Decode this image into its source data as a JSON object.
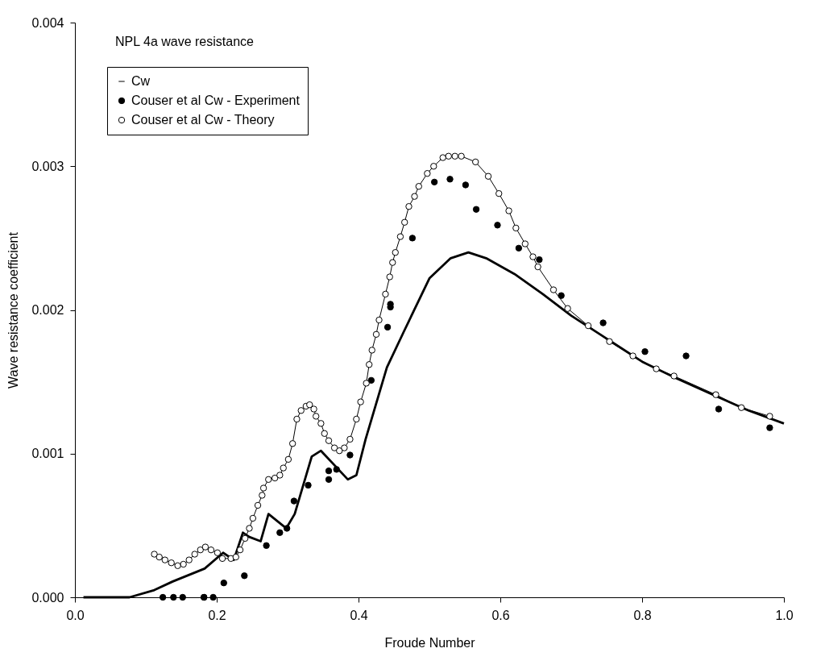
{
  "chart_data": {
    "type": "line",
    "title": "NPL 4a wave resistance",
    "xlabel": "Froude Number",
    "ylabel": "Wave resistance coefficient",
    "xlim": [
      0,
      1
    ],
    "ylim": [
      0,
      0.004
    ],
    "xticks": [
      {
        "value": 0,
        "label": "0.0"
      },
      {
        "value": 0.2,
        "label": "0.2"
      },
      {
        "value": 0.4,
        "label": "0.4"
      },
      {
        "value": 0.6,
        "label": "0.6"
      },
      {
        "value": 0.8,
        "label": "0.8"
      },
      {
        "value": 1,
        "label": "1.0"
      }
    ],
    "yticks": [
      {
        "value": 0,
        "label": "0.000"
      },
      {
        "value": 0.001,
        "label": "0.001"
      },
      {
        "value": 0.002,
        "label": "0.002"
      },
      {
        "value": 0.003,
        "label": "0.003"
      },
      {
        "value": 0.004,
        "label": "0.004"
      }
    ],
    "grid": false,
    "legend": "top left",
    "series": [
      {
        "name": "Cw",
        "marker": "none",
        "color": "#000000",
        "x": [
          0.012,
          0.026,
          0.056,
          0.077,
          0.112,
          0.138,
          0.183,
          0.209,
          0.224,
          0.237,
          0.246,
          0.262,
          0.273,
          0.298,
          0.31,
          0.334,
          0.347,
          0.385,
          0.397,
          0.41,
          0.44,
          0.464,
          0.5,
          0.53,
          0.555,
          0.58,
          0.62,
          0.66,
          0.7,
          0.75,
          0.8,
          0.85,
          0.9,
          0.95,
          1.0
        ],
        "values": [
          0,
          0,
          0,
          0,
          5e-05,
          0.00011,
          0.0002,
          0.00031,
          0.00026,
          0.00045,
          0.00042,
          0.00039,
          0.00058,
          0.00048,
          0.00058,
          0.00098,
          0.00102,
          0.00082,
          0.00085,
          0.0011,
          0.0016,
          0.00185,
          0.00222,
          0.00236,
          0.0024,
          0.00236,
          0.00225,
          0.00211,
          0.00196,
          0.0018,
          0.00164,
          0.00152,
          0.00141,
          0.0013,
          0.00121
        ]
      },
      {
        "name": "Couser et al Cw - Experiment",
        "type": "scatter",
        "marker": "circle",
        "color": "#000000",
        "x": [
          0.124,
          0.139,
          0.152,
          0.182,
          0.182,
          0.195,
          0.21,
          0.239,
          0.27,
          0.289,
          0.299,
          0.309,
          0.329,
          0.358,
          0.358,
          0.369,
          0.388,
          0.418,
          0.441,
          0.445,
          0.445,
          0.476,
          0.507,
          0.529,
          0.551,
          0.566,
          0.596,
          0.626,
          0.655,
          0.686,
          0.745,
          0.804,
          0.862,
          0.908,
          0.98
        ],
        "values": [
          0,
          0,
          0,
          0,
          0,
          0,
          0.0001,
          0.00015,
          0.00036,
          0.00045,
          0.00048,
          0.00067,
          0.00078,
          0.00082,
          0.00088,
          0.00089,
          0.00099,
          0.00151,
          0.00188,
          0.00202,
          0.00204,
          0.0025,
          0.00289,
          0.00291,
          0.00287,
          0.0027,
          0.00259,
          0.00243,
          0.00235,
          0.0021,
          0.00191,
          0.00171,
          0.00168,
          0.00131,
          0.00118
        ]
      },
      {
        "name": "Couser et al Cw - Theory",
        "marker": "circle",
        "color": "#000000",
        "x": [
          0.112,
          0.119,
          0.127,
          0.136,
          0.145,
          0.153,
          0.161,
          0.169,
          0.177,
          0.184,
          0.192,
          0.201,
          0.208,
          0.22,
          0.227,
          0.233,
          0.24,
          0.246,
          0.251,
          0.258,
          0.264,
          0.266,
          0.273,
          0.282,
          0.289,
          0.294,
          0.301,
          0.307,
          0.313,
          0.319,
          0.326,
          0.331,
          0.337,
          0.34,
          0.347,
          0.352,
          0.358,
          0.366,
          0.373,
          0.38,
          0.388,
          0.397,
          0.403,
          0.411,
          0.415,
          0.419,
          0.425,
          0.429,
          0.438,
          0.444,
          0.448,
          0.452,
          0.459,
          0.465,
          0.471,
          0.479,
          0.485,
          0.497,
          0.506,
          0.519,
          0.527,
          0.536,
          0.545,
          0.565,
          0.583,
          0.598,
          0.612,
          0.622,
          0.635,
          0.646,
          0.653,
          0.675,
          0.695,
          0.724,
          0.754,
          0.787,
          0.82,
          0.845,
          0.904,
          0.94,
          0.98
        ],
        "values": [
          0.0003,
          0.00028,
          0.00026,
          0.00024,
          0.00022,
          0.00023,
          0.00026,
          0.0003,
          0.00033,
          0.00035,
          0.00033,
          0.00031,
          0.00027,
          0.00027,
          0.00028,
          0.00033,
          0.00041,
          0.00048,
          0.00055,
          0.00064,
          0.00071,
          0.00076,
          0.00082,
          0.00083,
          0.00085,
          0.0009,
          0.00096,
          0.00107,
          0.00124,
          0.0013,
          0.00133,
          0.00134,
          0.00131,
          0.00126,
          0.00121,
          0.00114,
          0.00109,
          0.00104,
          0.00102,
          0.00104,
          0.0011,
          0.00124,
          0.00136,
          0.00149,
          0.00162,
          0.00172,
          0.00183,
          0.00193,
          0.00211,
          0.00223,
          0.00233,
          0.0024,
          0.00251,
          0.00261,
          0.00272,
          0.00279,
          0.00286,
          0.00295,
          0.003,
          0.00306,
          0.00307,
          0.00307,
          0.00307,
          0.00303,
          0.00293,
          0.00281,
          0.00269,
          0.00257,
          0.00246,
          0.00237,
          0.0023,
          0.00214,
          0.00201,
          0.00189,
          0.00178,
          0.00168,
          0.00159,
          0.00154,
          0.00141,
          0.00132,
          0.00126
        ]
      }
    ]
  }
}
